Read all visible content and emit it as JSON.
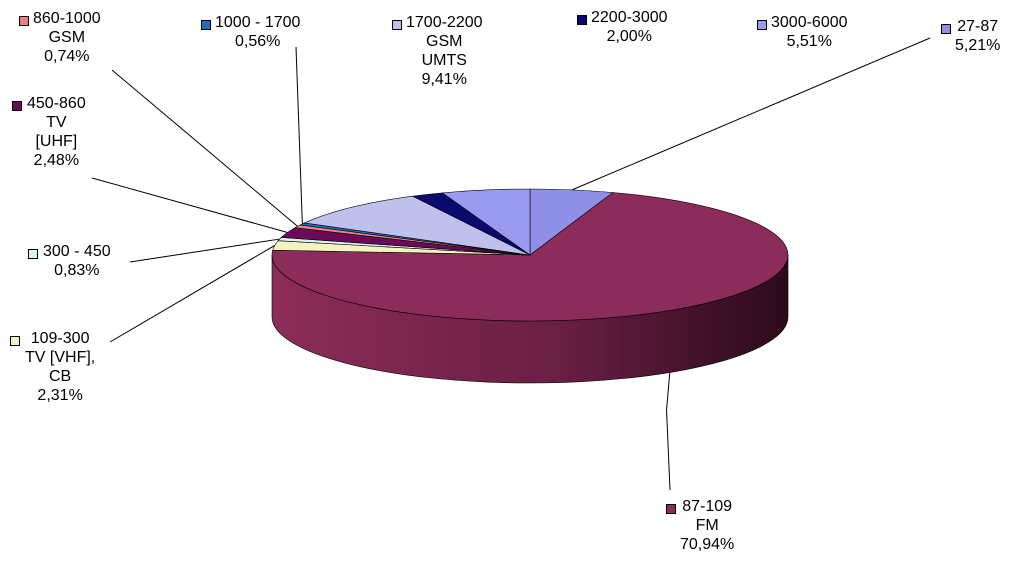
{
  "chart_data": {
    "type": "pie",
    "three_d": true,
    "legend": "labels next to slices",
    "slices": [
      {
        "lines": [
          "27-87",
          "5,21%"
        ],
        "value": 5.21,
        "color": "#8f8fe6"
      },
      {
        "lines": [
          "87-109",
          "FM",
          "70,94%"
        ],
        "value": 70.94,
        "color": "#8c2c5a"
      },
      {
        "lines": [
          "109-300",
          "TV [VHF],",
          "CB",
          "2,31%"
        ],
        "value": 2.31,
        "color": "#f5f2c2"
      },
      {
        "lines": [
          "300 - 450",
          "0,83%"
        ],
        "value": 0.83,
        "color": "#d8f4f4"
      },
      {
        "lines": [
          "450-860",
          "TV",
          "[UHF]",
          "2,48%"
        ],
        "value": 2.48,
        "color": "#6c0a5a"
      },
      {
        "lines": [
          "860-1000",
          "GSM",
          "0,74%"
        ],
        "value": 0.74,
        "color": "#f08080"
      },
      {
        "lines": [
          "1000 - 1700",
          "0,56%"
        ],
        "value": 0.56,
        "color": "#1f6fc0"
      },
      {
        "lines": [
          "1700-2200",
          "GSM",
          "UMTS",
          "9,41%"
        ],
        "value": 9.41,
        "color": "#c0c0ec"
      },
      {
        "lines": [
          "2200-3000",
          "2,00%"
        ],
        "value": 2.0,
        "color": "#0a0a6e"
      },
      {
        "lines": [
          "3000-6000",
          "5,51%"
        ],
        "value": 5.51,
        "color": "#9a9af0"
      }
    ]
  }
}
